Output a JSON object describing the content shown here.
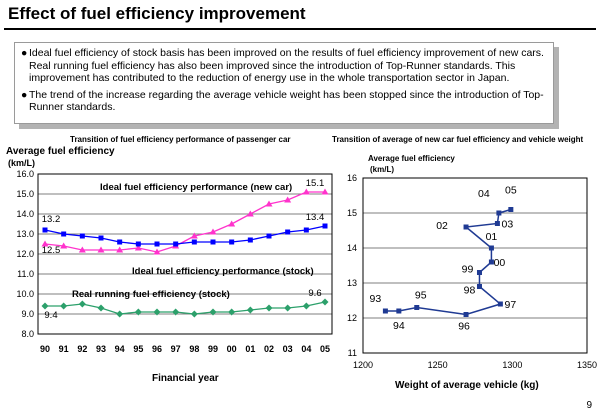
{
  "page": {
    "title": "Effect of fuel efficiency improvement",
    "bullets": [
      "Ideal fuel efficiency of stock basis has been improved on the results of fuel efficiency improvement of new cars. Real running fuel efficiency has also been improved since the introduction of Top-Runner standards. This improvement has contributed to the reduction of energy use in the whole transportation sector in Japan.",
      "The trend of the increase regarding the average vehicle weight has been stopped since the introduction of Top-Runner standards."
    ],
    "bullet_glyph": "●",
    "page_number": "9"
  },
  "chart_data": [
    {
      "type": "line",
      "title": "Transition of fuel efficiency performance of passenger car",
      "ylabel": "Average fuel efficiency",
      "yunit": "(km/L)",
      "xlabel": "Financial year",
      "categories": [
        "90",
        "91",
        "92",
        "93",
        "94",
        "95",
        "96",
        "97",
        "98",
        "99",
        "00",
        "01",
        "02",
        "03",
        "04",
        "05"
      ],
      "ylim": [
        8.0,
        16.0
      ],
      "yticks": [
        "8.0",
        "9.0",
        "10.0",
        "11.0",
        "12.0",
        "13.0",
        "14.0",
        "15.0",
        "16.0"
      ],
      "series": [
        {
          "name": "Ideal fuel efficiency performance (new car)",
          "color": "#ff33cc",
          "marker": "triangle",
          "values": [
            12.5,
            12.4,
            12.2,
            12.2,
            12.2,
            12.3,
            12.1,
            12.4,
            12.9,
            13.1,
            13.5,
            14.0,
            14.5,
            14.7,
            15.1,
            15.1
          ]
        },
        {
          "name": "Ideal fuel efficiency performance (stock)",
          "color": "#0000ff",
          "marker": "square",
          "values": [
            13.2,
            13.0,
            12.9,
            12.8,
            12.6,
            12.5,
            12.5,
            12.5,
            12.6,
            12.6,
            12.6,
            12.7,
            12.9,
            13.1,
            13.2,
            13.4
          ]
        },
        {
          "name": "Real running fuel efficiency (stock)",
          "color": "#2ca06b",
          "marker": "diamond",
          "values": [
            9.4,
            9.4,
            9.5,
            9.3,
            9.0,
            9.1,
            9.1,
            9.1,
            9.0,
            9.1,
            9.1,
            9.2,
            9.3,
            9.3,
            9.4,
            9.6
          ]
        }
      ],
      "legend_labels": [
        {
          "text": "Ideal fuel efficiency performance (new car)",
          "series": 0
        },
        {
          "text": "Ideal fuel efficiency performance (stock)",
          "series": 1
        },
        {
          "text": "Real running fuel efficiency (stock)",
          "series": 2
        }
      ],
      "annotations": [
        {
          "text": "13.2",
          "series": 1,
          "index": 0
        },
        {
          "text": "12.5",
          "series": 0,
          "index": 0
        },
        {
          "text": "9.4",
          "series": 2,
          "index": 0
        },
        {
          "text": "15.1",
          "series": 0,
          "index": 15
        },
        {
          "text": "13.4",
          "series": 1,
          "index": 15
        },
        {
          "text": "9.6",
          "series": 2,
          "index": 15
        }
      ]
    },
    {
      "type": "scatter",
      "title": "Transition of average of new car fuel efficiency and vehicle weight",
      "ylabel": "Average fuel efficiency",
      "yunit": "(km/L)",
      "xlabel": "Weight of average vehicle (kg)",
      "xlim": [
        1200,
        1350
      ],
      "xticks": [
        "1200",
        "1250",
        "1300",
        "1350"
      ],
      "ylim": [
        11,
        16
      ],
      "yticks": [
        "11",
        "12",
        "13",
        "14",
        "15",
        "16"
      ],
      "color": "#1f3a93",
      "points": [
        {
          "label": "93",
          "x": 1215,
          "y": 12.2
        },
        {
          "label": "94",
          "x": 1224,
          "y": 12.2
        },
        {
          "label": "95",
          "x": 1236,
          "y": 12.3
        },
        {
          "label": "96",
          "x": 1269,
          "y": 12.1
        },
        {
          "label": "97",
          "x": 1292,
          "y": 12.4
        },
        {
          "label": "98",
          "x": 1278,
          "y": 12.9
        },
        {
          "label": "99",
          "x": 1278,
          "y": 13.3
        },
        {
          "label": "00",
          "x": 1286,
          "y": 13.6
        },
        {
          "label": "01",
          "x": 1286,
          "y": 14.0
        },
        {
          "label": "02",
          "x": 1269,
          "y": 14.6
        },
        {
          "label": "03",
          "x": 1290,
          "y": 14.7
        },
        {
          "label": "04",
          "x": 1291,
          "y": 15.0
        },
        {
          "label": "05",
          "x": 1299,
          "y": 15.1
        }
      ]
    }
  ]
}
